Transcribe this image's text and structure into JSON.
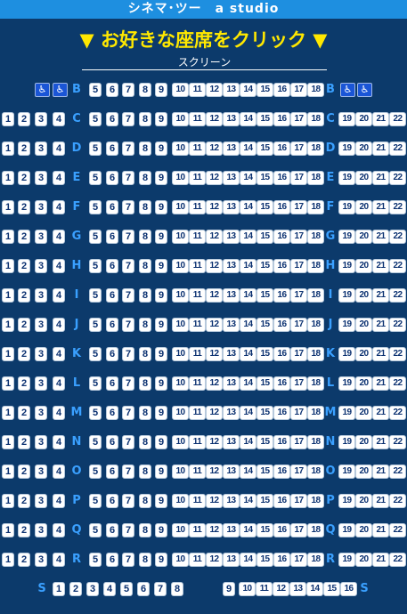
{
  "header": {
    "title": "シネマ･ツー　a studio"
  },
  "instruction": {
    "text": "▼ お好きな座席をクリック ▼"
  },
  "screen": {
    "label": "スクリーン"
  },
  "icons": {
    "wheelchair": "wheelchair-icon"
  },
  "colors": {
    "background": "#0c3a6b",
    "header": "#1e8fe0",
    "instruction": "#ffe800",
    "seat": "#ffffff",
    "seat_text": "#0a3070",
    "wheelchair_seat": "#1a55d6",
    "row_label": "#3aa0ff"
  },
  "rows": [
    {
      "label": "B",
      "left": [],
      "center": [
        "5",
        "6",
        "7",
        "8",
        "9",
        "10",
        "11",
        "12",
        "13",
        "14",
        "15",
        "16",
        "17",
        "18"
      ],
      "right": [],
      "wheelchair_left": 2,
      "wheelchair_right": 2
    },
    {
      "label": "C",
      "left": [
        "1",
        "2",
        "3",
        "4"
      ],
      "center": [
        "5",
        "6",
        "7",
        "8",
        "9",
        "10",
        "11",
        "12",
        "13",
        "14",
        "15",
        "16",
        "17",
        "18"
      ],
      "right": [
        "19",
        "20",
        "21",
        "22"
      ]
    },
    {
      "label": "D",
      "left": [
        "1",
        "2",
        "3",
        "4"
      ],
      "center": [
        "5",
        "6",
        "7",
        "8",
        "9",
        "10",
        "11",
        "12",
        "13",
        "14",
        "15",
        "16",
        "17",
        "18"
      ],
      "right": [
        "19",
        "20",
        "21",
        "22"
      ]
    },
    {
      "label": "E",
      "left": [
        "1",
        "2",
        "3",
        "4"
      ],
      "center": [
        "5",
        "6",
        "7",
        "8",
        "9",
        "10",
        "11",
        "12",
        "13",
        "14",
        "15",
        "16",
        "17",
        "18"
      ],
      "right": [
        "19",
        "20",
        "21",
        "22"
      ]
    },
    {
      "label": "F",
      "left": [
        "1",
        "2",
        "3",
        "4"
      ],
      "center": [
        "5",
        "6",
        "7",
        "8",
        "9",
        "10",
        "11",
        "12",
        "13",
        "14",
        "15",
        "16",
        "17",
        "18"
      ],
      "right": [
        "19",
        "20",
        "21",
        "22"
      ]
    },
    {
      "label": "G",
      "left": [
        "1",
        "2",
        "3",
        "4"
      ],
      "center": [
        "5",
        "6",
        "7",
        "8",
        "9",
        "10",
        "11",
        "12",
        "13",
        "14",
        "15",
        "16",
        "17",
        "18"
      ],
      "right": [
        "19",
        "20",
        "21",
        "22"
      ]
    },
    {
      "label": "H",
      "left": [
        "1",
        "2",
        "3",
        "4"
      ],
      "center": [
        "5",
        "6",
        "7",
        "8",
        "9",
        "10",
        "11",
        "12",
        "13",
        "14",
        "15",
        "16",
        "17",
        "18"
      ],
      "right": [
        "19",
        "20",
        "21",
        "22"
      ]
    },
    {
      "label": "I",
      "left": [
        "1",
        "2",
        "3",
        "4"
      ],
      "center": [
        "5",
        "6",
        "7",
        "8",
        "9",
        "10",
        "11",
        "12",
        "13",
        "14",
        "15",
        "16",
        "17",
        "18"
      ],
      "right": [
        "19",
        "20",
        "21",
        "22"
      ]
    },
    {
      "label": "J",
      "left": [
        "1",
        "2",
        "3",
        "4"
      ],
      "center": [
        "5",
        "6",
        "7",
        "8",
        "9",
        "10",
        "11",
        "12",
        "13",
        "14",
        "15",
        "16",
        "17",
        "18"
      ],
      "right": [
        "19",
        "20",
        "21",
        "22"
      ]
    },
    {
      "label": "K",
      "left": [
        "1",
        "2",
        "3",
        "4"
      ],
      "center": [
        "5",
        "6",
        "7",
        "8",
        "9",
        "10",
        "11",
        "12",
        "13",
        "14",
        "15",
        "16",
        "17",
        "18"
      ],
      "right": [
        "19",
        "20",
        "21",
        "22"
      ]
    },
    {
      "label": "L",
      "left": [
        "1",
        "2",
        "3",
        "4"
      ],
      "center": [
        "5",
        "6",
        "7",
        "8",
        "9",
        "10",
        "11",
        "12",
        "13",
        "14",
        "15",
        "16",
        "17",
        "18"
      ],
      "right": [
        "19",
        "20",
        "21",
        "22"
      ]
    },
    {
      "label": "M",
      "left": [
        "1",
        "2",
        "3",
        "4"
      ],
      "center": [
        "5",
        "6",
        "7",
        "8",
        "9",
        "10",
        "11",
        "12",
        "13",
        "14",
        "15",
        "16",
        "17",
        "18"
      ],
      "right": [
        "19",
        "20",
        "21",
        "22"
      ]
    },
    {
      "label": "N",
      "left": [
        "1",
        "2",
        "3",
        "4"
      ],
      "center": [
        "5",
        "6",
        "7",
        "8",
        "9",
        "10",
        "11",
        "12",
        "13",
        "14",
        "15",
        "16",
        "17",
        "18"
      ],
      "right": [
        "19",
        "20",
        "21",
        "22"
      ]
    },
    {
      "label": "O",
      "left": [
        "1",
        "2",
        "3",
        "4"
      ],
      "center": [
        "5",
        "6",
        "7",
        "8",
        "9",
        "10",
        "11",
        "12",
        "13",
        "14",
        "15",
        "16",
        "17",
        "18"
      ],
      "right": [
        "19",
        "20",
        "21",
        "22"
      ]
    },
    {
      "label": "P",
      "left": [
        "1",
        "2",
        "3",
        "4"
      ],
      "center": [
        "5",
        "6",
        "7",
        "8",
        "9",
        "10",
        "11",
        "12",
        "13",
        "14",
        "15",
        "16",
        "17",
        "18"
      ],
      "right": [
        "19",
        "20",
        "21",
        "22"
      ]
    },
    {
      "label": "Q",
      "left": [
        "1",
        "2",
        "3",
        "4"
      ],
      "center": [
        "5",
        "6",
        "7",
        "8",
        "9",
        "10",
        "11",
        "12",
        "13",
        "14",
        "15",
        "16",
        "17",
        "18"
      ],
      "right": [
        "19",
        "20",
        "21",
        "22"
      ]
    },
    {
      "label": "R",
      "left": [
        "1",
        "2",
        "3",
        "4"
      ],
      "center": [
        "5",
        "6",
        "7",
        "8",
        "9",
        "10",
        "11",
        "12",
        "13",
        "14",
        "15",
        "16",
        "17",
        "18"
      ],
      "right": [
        "19",
        "20",
        "21",
        "22"
      ]
    }
  ],
  "row_s": {
    "label": "S",
    "left": [
      "1",
      "2",
      "3",
      "4",
      "5",
      "6",
      "7",
      "8"
    ],
    "right": [
      "9",
      "10",
      "11",
      "12",
      "13",
      "14",
      "15",
      "16"
    ]
  }
}
